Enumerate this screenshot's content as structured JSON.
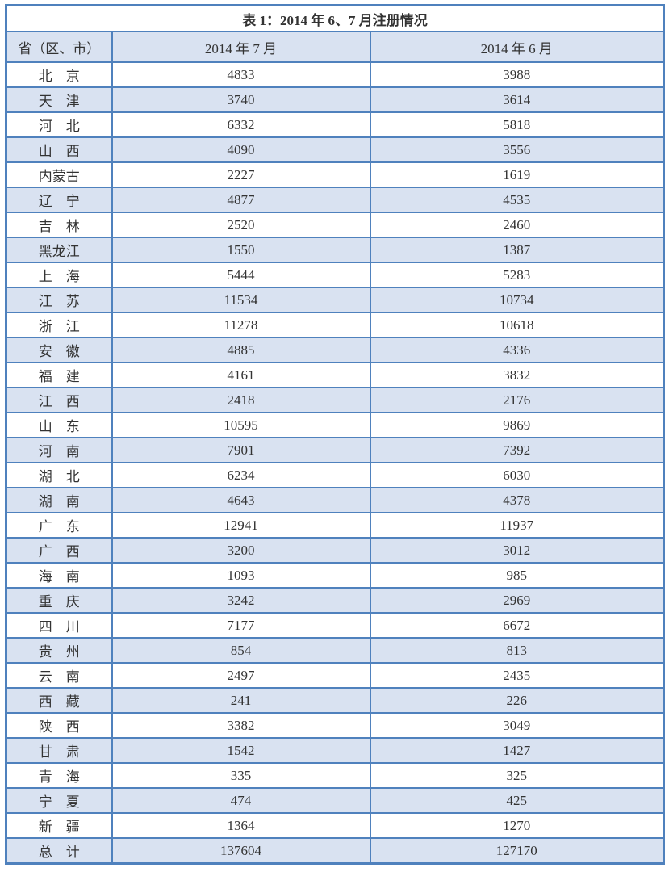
{
  "table": {
    "title": "表 1：2014 年 6、7 月注册情况",
    "columns": [
      "省（区、市）",
      "2014 年 7 月",
      "2014 年 6 月"
    ],
    "rows": [
      {
        "province": "北　京",
        "jul": "4833",
        "jun": "3988"
      },
      {
        "province": "天　津",
        "jul": "3740",
        "jun": "3614"
      },
      {
        "province": "河　北",
        "jul": "6332",
        "jun": "5818"
      },
      {
        "province": "山　西",
        "jul": "4090",
        "jun": "3556"
      },
      {
        "province": "内蒙古",
        "jul": "2227",
        "jun": "1619"
      },
      {
        "province": "辽　宁",
        "jul": "4877",
        "jun": "4535"
      },
      {
        "province": "吉　林",
        "jul": "2520",
        "jun": "2460"
      },
      {
        "province": "黑龙江",
        "jul": "1550",
        "jun": "1387"
      },
      {
        "province": "上　海",
        "jul": "5444",
        "jun": "5283"
      },
      {
        "province": "江　苏",
        "jul": "11534",
        "jun": "10734"
      },
      {
        "province": "浙　江",
        "jul": "11278",
        "jun": "10618"
      },
      {
        "province": "安　徽",
        "jul": "4885",
        "jun": "4336"
      },
      {
        "province": "福　建",
        "jul": "4161",
        "jun": "3832"
      },
      {
        "province": "江　西",
        "jul": "2418",
        "jun": "2176"
      },
      {
        "province": "山　东",
        "jul": "10595",
        "jun": "9869"
      },
      {
        "province": "河　南",
        "jul": "7901",
        "jun": "7392"
      },
      {
        "province": "湖　北",
        "jul": "6234",
        "jun": "6030"
      },
      {
        "province": "湖　南",
        "jul": "4643",
        "jun": "4378"
      },
      {
        "province": "广　东",
        "jul": "12941",
        "jun": "11937"
      },
      {
        "province": "广　西",
        "jul": "3200",
        "jun": "3012"
      },
      {
        "province": "海　南",
        "jul": "1093",
        "jun": "985"
      },
      {
        "province": "重　庆",
        "jul": "3242",
        "jun": "2969"
      },
      {
        "province": "四　川",
        "jul": "7177",
        "jun": "6672"
      },
      {
        "province": "贵　州",
        "jul": "854",
        "jun": "813"
      },
      {
        "province": "云　南",
        "jul": "2497",
        "jun": "2435"
      },
      {
        "province": "西　藏",
        "jul": "241",
        "jun": "226"
      },
      {
        "province": "陕　西",
        "jul": "3382",
        "jun": "3049"
      },
      {
        "province": "甘　肃",
        "jul": "1542",
        "jun": "1427"
      },
      {
        "province": "青　海",
        "jul": "335",
        "jun": "325"
      },
      {
        "province": "宁　夏",
        "jul": "474",
        "jun": "425"
      },
      {
        "province": "新　疆",
        "jul": "1364",
        "jun": "1270"
      },
      {
        "province": "总　计",
        "jul": "137604",
        "jun": "127170"
      }
    ]
  },
  "colors": {
    "border": "#4f81bd",
    "row_shade": "#d9e2f1",
    "text": "#333333"
  }
}
